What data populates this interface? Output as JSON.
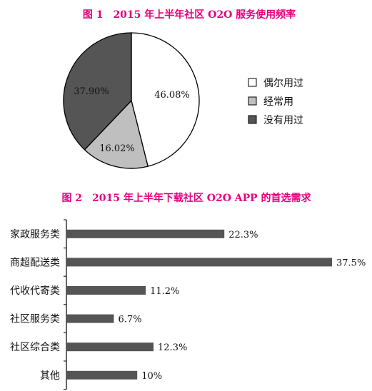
{
  "chart_data": [
    {
      "type": "pie",
      "title": "图 1　2015 年上半年社区 O2O 服务使用频率",
      "labels": [
        "偶尔用过",
        "经常用",
        "没有用过"
      ],
      "values": [
        46.08,
        16.02,
        37.9
      ],
      "value_labels": [
        "46.08%",
        "16.02%",
        "37.90%"
      ],
      "colors": [
        "#ffffff",
        "#bfbfbf",
        "#555555"
      ],
      "legend_position": "right"
    },
    {
      "type": "bar",
      "orientation": "horizontal",
      "title": "图 2　2015 年上半年下载社区 O2O APP 的首选需求",
      "categories": [
        "家政服务类",
        "商超配送类",
        "代收代寄类",
        "社区服务类",
        "社区综合类",
        "其他"
      ],
      "values": [
        22.3,
        37.5,
        11.2,
        6.7,
        12.3,
        10
      ],
      "value_labels": [
        "22.3%",
        "37.5%",
        "11.2%",
        "6.7%",
        "12.3%",
        "10%"
      ],
      "bar_color": "#555555",
      "xlim": [
        0,
        37.5
      ]
    }
  ]
}
